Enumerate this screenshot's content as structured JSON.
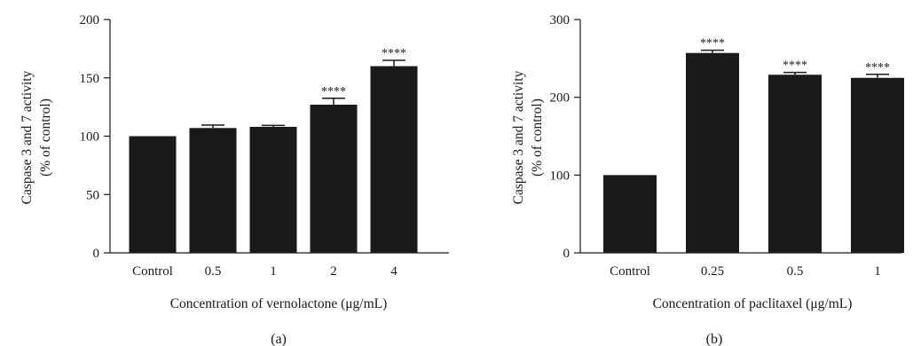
{
  "chart_data": [
    {
      "type": "bar",
      "panel_label": "(a)",
      "categories": [
        "Control",
        "0.5",
        "1",
        "2",
        "4"
      ],
      "values": [
        100,
        107,
        108,
        127,
        160
      ],
      "errors": [
        0,
        2.5,
        1.2,
        5.5,
        5
      ],
      "significance": [
        "",
        "",
        "",
        "****",
        "****"
      ],
      "xlabel": "Concentration of vernolactone (μg/mL)",
      "ylabel": "Caspase 3 and 7 activity",
      "ylabel2": "(% of control)",
      "ylim": [
        0,
        200
      ],
      "yticks": [
        0,
        50,
        100,
        150,
        200
      ],
      "bar_color": "#1a1a1a",
      "grid": false,
      "legend": "none"
    },
    {
      "type": "bar",
      "panel_label": "(b)",
      "categories": [
        "Control",
        "0.25",
        "0.5",
        "1"
      ],
      "values": [
        100,
        257,
        229,
        225
      ],
      "errors": [
        0,
        3.5,
        3,
        4.5
      ],
      "significance": [
        "",
        "****",
        "****",
        "****"
      ],
      "xlabel": "Concentration of paclitaxel (μg/mL)",
      "ylabel": "Caspase 3 and 7 activity",
      "ylabel2": "(% of control)",
      "ylim": [
        0,
        300
      ],
      "yticks": [
        0,
        100,
        200,
        300
      ],
      "bar_color": "#1a1a1a",
      "grid": false,
      "legend": "none"
    }
  ]
}
